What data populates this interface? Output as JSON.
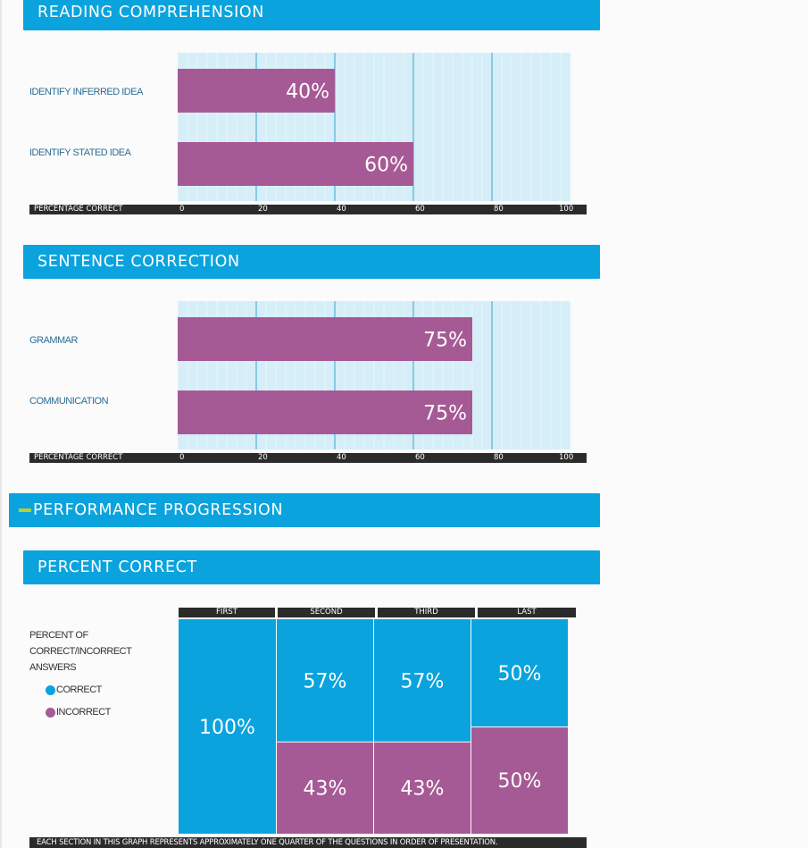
{
  "colors": {
    "header": "#0aa3dd",
    "bar": "#a65a95",
    "correct": "#0aa3dd",
    "incorrect": "#a65a95",
    "plot_bg": "#d6eef8",
    "grid": "#3aa6cf",
    "axis": "#2b2b2b"
  },
  "sections": {
    "reading": {
      "title": "READING COMPREHENSION"
    },
    "sentence": {
      "title": "SENTENCE CORRECTION"
    },
    "progression": {
      "title": "PERFORMANCE PROGRESSION"
    },
    "percent": {
      "title": "PERCENT CORRECT"
    }
  },
  "chart_data": [
    {
      "type": "bar",
      "title": "READING COMPREHENSION",
      "categories": [
        "IDENTIFY INFERRED IDEA",
        "IDENTIFY STATED IDEA"
      ],
      "values": [
        40,
        60
      ],
      "value_labels": [
        "40%",
        "60%"
      ],
      "xlabel": "PERCENTAGE CORRECT",
      "xlim": [
        0,
        100
      ],
      "ticks": [
        "0",
        "20",
        "40",
        "60",
        "80",
        "100"
      ],
      "grid": true
    },
    {
      "type": "bar",
      "title": "SENTENCE CORRECTION",
      "categories": [
        "GRAMMAR",
        "COMMUNICATION"
      ],
      "values": [
        75,
        75
      ],
      "value_labels": [
        "75%",
        "75%"
      ],
      "xlabel": "PERCENTAGE CORRECT",
      "xlim": [
        0,
        100
      ],
      "ticks": [
        "0",
        "20",
        "40",
        "60",
        "80",
        "100"
      ],
      "grid": true
    },
    {
      "type": "bar",
      "title": "PERCENT CORRECT",
      "stacked": true,
      "categories": [
        "FIRST",
        "SECOND",
        "THIRD",
        "LAST"
      ],
      "series": [
        {
          "name": "CORRECT",
          "values": [
            100,
            57,
            57,
            50
          ],
          "value_labels": [
            "100%",
            "57%",
            "57%",
            "50%"
          ]
        },
        {
          "name": "INCORRECT",
          "values": [
            0,
            43,
            43,
            50
          ],
          "value_labels": [
            "",
            "43%",
            "43%",
            "50%"
          ]
        }
      ],
      "legend_title": "PERCENT OF CORRECT/INCORRECT ANSWERS",
      "legend_lines": [
        "PERCENT OF",
        "CORRECT/INCORRECT",
        "ANSWERS"
      ],
      "legend_placement": "left",
      "footnote": "EACH SECTION IN THIS GRAPH REPRESENTS APPROXIMATELY ONE QUARTER OF THE QUESTIONS IN ORDER OF PRESENTATION."
    }
  ]
}
